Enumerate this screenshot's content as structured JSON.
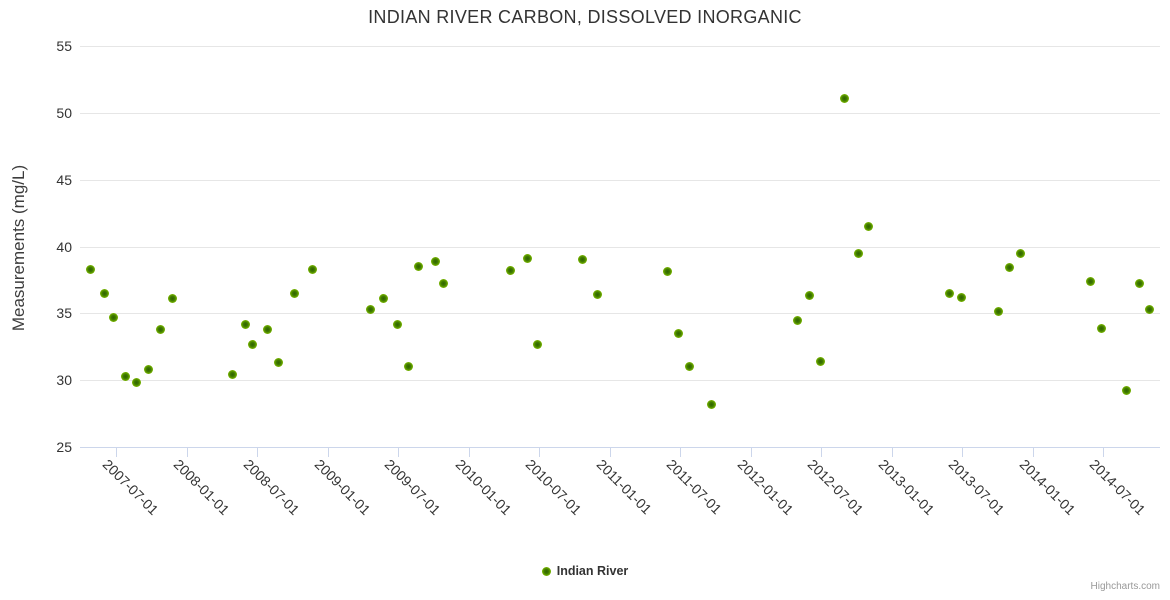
{
  "chart_data": {
    "type": "scatter",
    "title": "INDIAN RIVER CARBON, DISSOLVED INORGANIC",
    "xlabel": "",
    "ylabel": "Measurements (mg/L)",
    "ylim": [
      25,
      55
    ],
    "y_ticks": [
      25,
      30,
      35,
      40,
      45,
      50,
      55
    ],
    "xlim": [
      "2007-03-30",
      "2014-11-25"
    ],
    "x_ticks": [
      "2007-07-01",
      "2008-01-01",
      "2008-07-01",
      "2009-01-01",
      "2009-07-01",
      "2010-01-01",
      "2010-07-01",
      "2011-01-01",
      "2011-07-01",
      "2012-01-01",
      "2012-07-01",
      "2013-01-01",
      "2013-07-01",
      "2014-01-01",
      "2014-07-01"
    ],
    "grid": true,
    "legend_position": "bottom-center",
    "series": [
      {
        "name": "Indian River",
        "color": "#7fb800",
        "points": [
          {
            "x": "2007-04-27",
            "y": 38.3
          },
          {
            "x": "2007-06-02",
            "y": 36.5
          },
          {
            "x": "2007-06-24",
            "y": 34.7
          },
          {
            "x": "2007-07-27",
            "y": 30.3
          },
          {
            "x": "2007-08-24",
            "y": 29.8
          },
          {
            "x": "2007-09-23",
            "y": 30.8
          },
          {
            "x": "2007-10-25",
            "y": 33.8
          },
          {
            "x": "2007-11-24",
            "y": 36.1
          },
          {
            "x": "2008-04-27",
            "y": 30.4
          },
          {
            "x": "2008-05-31",
            "y": 34.2
          },
          {
            "x": "2008-06-20",
            "y": 32.7
          },
          {
            "x": "2008-07-27",
            "y": 33.8
          },
          {
            "x": "2008-08-24",
            "y": 31.3
          },
          {
            "x": "2008-10-05",
            "y": 36.5
          },
          {
            "x": "2008-11-20",
            "y": 38.3
          },
          {
            "x": "2009-04-20",
            "y": 35.3
          },
          {
            "x": "2009-05-24",
            "y": 36.1
          },
          {
            "x": "2009-06-29",
            "y": 34.2
          },
          {
            "x": "2009-07-27",
            "y": 31.0
          },
          {
            "x": "2009-08-22",
            "y": 38.5
          },
          {
            "x": "2009-10-05",
            "y": 38.9
          },
          {
            "x": "2009-10-26",
            "y": 37.2
          },
          {
            "x": "2010-04-18",
            "y": 38.2
          },
          {
            "x": "2010-05-31",
            "y": 39.1
          },
          {
            "x": "2010-06-27",
            "y": 32.7
          },
          {
            "x": "2010-10-22",
            "y": 39.0
          },
          {
            "x": "2010-11-29",
            "y": 36.4
          },
          {
            "x": "2011-05-30",
            "y": 38.1
          },
          {
            "x": "2011-06-28",
            "y": 33.5
          },
          {
            "x": "2011-07-26",
            "y": 31.0
          },
          {
            "x": "2011-09-21",
            "y": 28.2
          },
          {
            "x": "2012-05-01",
            "y": 34.5
          },
          {
            "x": "2012-05-30",
            "y": 36.3
          },
          {
            "x": "2012-06-28",
            "y": 31.4
          },
          {
            "x": "2012-08-30",
            "y": 51.1
          },
          {
            "x": "2012-10-04",
            "y": 39.5
          },
          {
            "x": "2012-10-31",
            "y": 41.5
          },
          {
            "x": "2013-05-29",
            "y": 36.5
          },
          {
            "x": "2013-06-28",
            "y": 36.2
          },
          {
            "x": "2013-10-02",
            "y": 35.1
          },
          {
            "x": "2013-10-30",
            "y": 38.4
          },
          {
            "x": "2013-11-28",
            "y": 39.5
          },
          {
            "x": "2014-05-29",
            "y": 37.4
          },
          {
            "x": "2014-06-27",
            "y": 33.9
          },
          {
            "x": "2014-08-29",
            "y": 29.2
          },
          {
            "x": "2014-10-02",
            "y": 37.2
          },
          {
            "x": "2014-10-30",
            "y": 35.3
          }
        ]
      }
    ]
  },
  "legend": {
    "label": "Indian River"
  },
  "credits": "Highcharts.com",
  "colors": {
    "point_outer": "#7fb800",
    "point_inner": "#2f6200",
    "gridline": "#e6e6e6",
    "axis_line": "#ccd6eb",
    "text": "#333333",
    "credits_text": "#999999"
  }
}
